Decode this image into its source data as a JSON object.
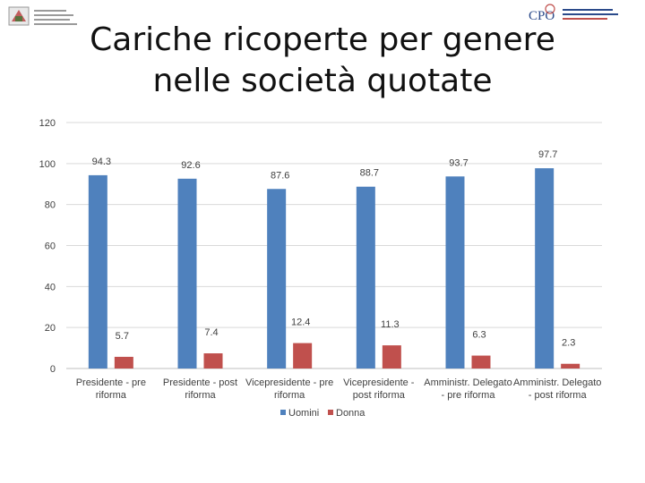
{
  "slide": {
    "title": "Cariche ricoperte per genere nelle società quotate"
  },
  "logos": {
    "left_name": "ministry-crest-logo",
    "right_name": "cpo-logo",
    "right_text": "CPO"
  },
  "chart_data": {
    "type": "bar",
    "title": "",
    "xlabel": "",
    "ylabel": "",
    "ylim": [
      0,
      120
    ],
    "yticks": [
      0,
      20,
      40,
      60,
      80,
      100,
      120
    ],
    "grid": true,
    "legend_position": "bottom",
    "categories": [
      [
        "Presidente - pre",
        "riforma"
      ],
      [
        "Presidente - post",
        "riforma"
      ],
      [
        "Vicepresidente - pre",
        "riforma"
      ],
      [
        "Vicepresidente -",
        "post riforma"
      ],
      [
        "Amministr. Delegato",
        "- pre riforma"
      ],
      [
        "Amministr. Delegato",
        "- post riforma"
      ]
    ],
    "series": [
      {
        "name": "Uomini",
        "color": "#4f81bd",
        "values": [
          94.3,
          92.6,
          87.6,
          88.7,
          93.7,
          97.7
        ],
        "labels": [
          "94.3",
          "92.6",
          "87.6",
          "88.7",
          "93.7",
          "97.7"
        ]
      },
      {
        "name": "Donna",
        "color": "#c0504d",
        "values": [
          5.7,
          7.4,
          12.4,
          11.3,
          6.3,
          2.3
        ],
        "labels": [
          "5.7",
          "7.4",
          "12.4",
          "11.3",
          "6.3",
          "2.3"
        ]
      }
    ]
  }
}
